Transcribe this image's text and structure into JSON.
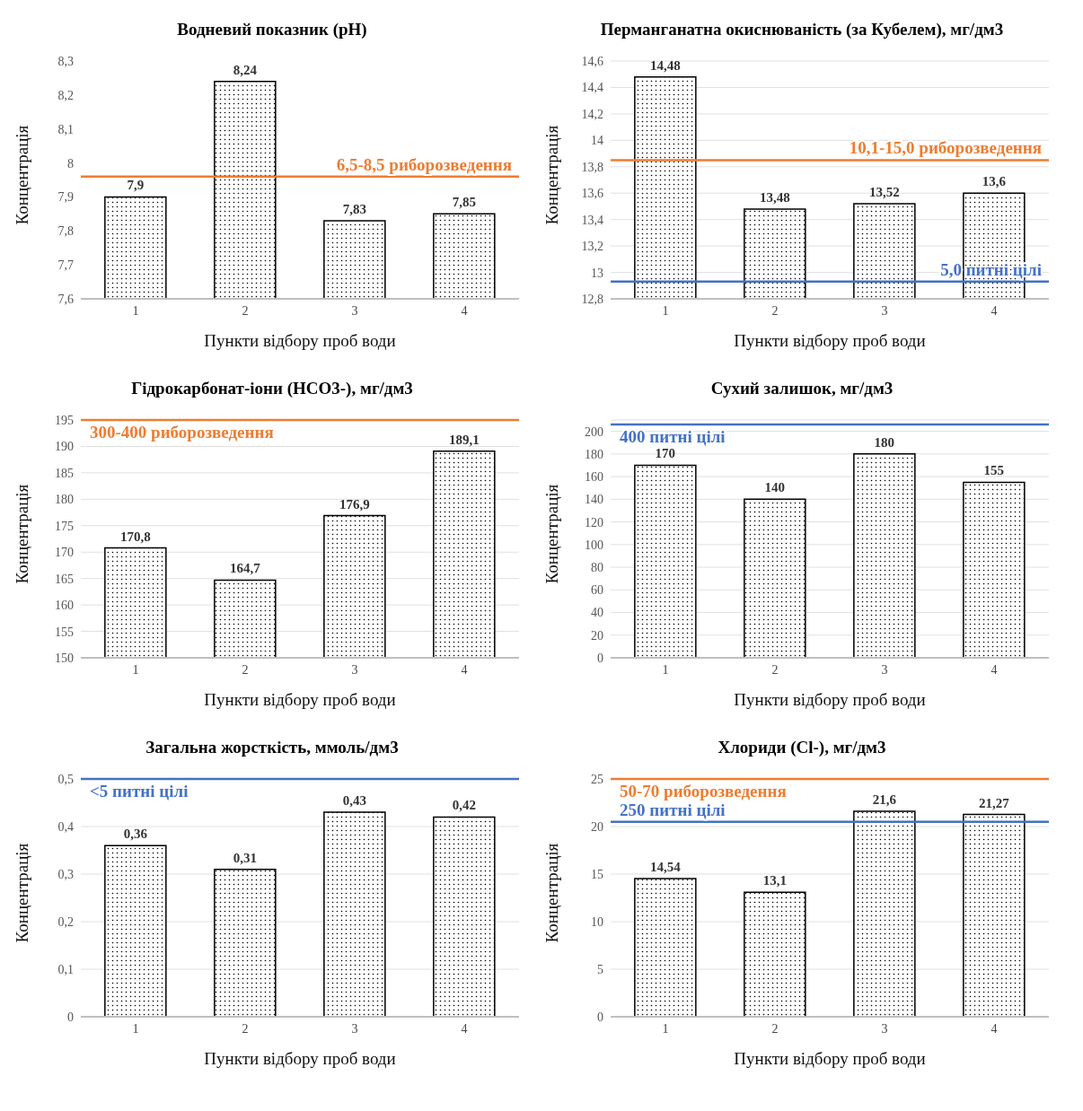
{
  "chart_data": [
    {
      "type": "bar",
      "title": "Водневий показник (pH)",
      "xlabel": "Пункти відбору проб води",
      "ylabel": "Концентрація",
      "categories": [
        "1",
        "2",
        "3",
        "4"
      ],
      "values": [
        7.9,
        8.24,
        7.83,
        7.85
      ],
      "value_labels": [
        "7,9",
        "8,24",
        "7,83",
        "7,85"
      ],
      "color": "#000000",
      "ylim": [
        7.6,
        8.3
      ],
      "yticks": [
        {
          "value": 7.6,
          "label": "7,6"
        },
        {
          "value": 7.7,
          "label": "7,7"
        },
        {
          "value": 7.8,
          "label": "7,8"
        },
        {
          "value": 7.9,
          "label": "7,9"
        },
        8,
        {
          "value": 8.1,
          "label": "8,1"
        },
        {
          "value": 8.2,
          "label": "8,2"
        },
        {
          "value": 8.3,
          "label": "8,3"
        }
      ],
      "grid": false,
      "ref_lines": [
        {
          "axis": "y",
          "value": 7.96,
          "label": "6,5-8,5  риборозведення",
          "color": "#ed7d31"
        }
      ]
    },
    {
      "type": "bar",
      "title": "Перманганатна окиснюваність (за Кубелем), мг/дм3",
      "xlabel": "Пункти відбору проб води",
      "ylabel": "Концентрація",
      "categories": [
        "1",
        "2",
        "3",
        "4"
      ],
      "values": [
        14.48,
        13.48,
        13.52,
        13.6
      ],
      "value_labels": [
        "14,48",
        "13,48",
        "13,52",
        "13,6"
      ],
      "color": "#000000",
      "ylim": [
        12.8,
        14.6
      ],
      "yticks": [
        {
          "value": 12.8,
          "label": "12,8"
        },
        13,
        {
          "value": 13.2,
          "label": "13,2"
        },
        {
          "value": 13.4,
          "label": "13,4"
        },
        {
          "value": 13.6,
          "label": "13,6"
        },
        {
          "value": 13.8,
          "label": "13,8"
        },
        14,
        {
          "value": 14.2,
          "label": "14,2"
        },
        {
          "value": 14.4,
          "label": "14,4"
        },
        {
          "value": 14.6,
          "label": "14,6"
        }
      ],
      "grid": "y",
      "ref_lines": [
        {
          "axis": "y",
          "value": 13.85,
          "label": "10,1-15,0  риборозведення",
          "color": "#ed7d31"
        },
        {
          "axis": "y",
          "value": 12.93,
          "label": "5,0  питні цілі",
          "color": "#4472c4"
        }
      ]
    },
    {
      "type": "bar",
      "title": "Гідрокарбонат-іони (HCO3-), мг/дм3",
      "xlabel": "Пункти відбору проб води",
      "ylabel": "Концентрація",
      "categories": [
        "1",
        "2",
        "3",
        "4"
      ],
      "values": [
        170.8,
        164.7,
        176.9,
        189.1
      ],
      "value_labels": [
        "170,8",
        "164,7",
        "176,9",
        "189,1"
      ],
      "color": "#000000",
      "ylim": [
        150,
        195
      ],
      "yticks": [
        150,
        155,
        160,
        165,
        170,
        175,
        180,
        185,
        190,
        195
      ],
      "grid": "y",
      "ref_lines": [
        {
          "axis": "y",
          "value": 195,
          "label": "300-400  риборозведення",
          "color": "#ed7d31"
        }
      ]
    },
    {
      "type": "bar",
      "title": "Сухий залишок, мг/дм3",
      "xlabel": "Пункти відбору проб води",
      "ylabel": "Концентрація",
      "categories": [
        "1",
        "2",
        "3",
        "4"
      ],
      "values": [
        170,
        140,
        180,
        155
      ],
      "data_labels": true,
      "color": "#000000",
      "ylim": [
        0,
        210
      ],
      "yticks": [
        0,
        20,
        40,
        60,
        80,
        100,
        120,
        140,
        160,
        180,
        200
      ],
      "grid": "y",
      "ref_lines": [
        {
          "axis": "y",
          "value": 206,
          "label": "400  питні цілі",
          "color": "#4472c4"
        }
      ]
    },
    {
      "type": "bar",
      "title": "Загальна жорсткість, ммоль/дм3",
      "xlabel": "Пункти відбору проб води",
      "ylabel": "Концентрація",
      "categories": [
        "1",
        "2",
        "3",
        "4"
      ],
      "values": [
        0.36,
        0.31,
        0.43,
        0.42
      ],
      "value_labels": [
        "0,36",
        "0,31",
        "0,43",
        "0,42"
      ],
      "color": "#000000",
      "ylim": [
        0,
        0.5
      ],
      "yticks": [
        0,
        {
          "value": 0.1,
          "label": "0,1"
        },
        {
          "value": 0.2,
          "label": "0,2"
        },
        {
          "value": 0.3,
          "label": "0,3"
        },
        {
          "value": 0.4,
          "label": "0,4"
        },
        {
          "value": 0.5,
          "label": "0,5"
        }
      ],
      "grid": "y",
      "ref_lines": [
        {
          "axis": "y",
          "value": 0.5,
          "label": "<5  питні цілі",
          "color": "#4472c4"
        }
      ]
    },
    {
      "type": "bar",
      "title": "Хлориди (Cl-), мг/дм3",
      "xlabel": "Пункти відбору проб води",
      "ylabel": "Концентрація",
      "categories": [
        "1",
        "2",
        "3",
        "4"
      ],
      "values": [
        14.54,
        13.1,
        21.6,
        21.27
      ],
      "value_labels": [
        "14,54",
        "13,1",
        "21,6",
        "21,27"
      ],
      "color": "#000000",
      "ylim": [
        0,
        25
      ],
      "yticks": [
        0,
        5,
        10,
        15,
        20,
        25
      ],
      "grid": "y",
      "ref_lines": [
        {
          "axis": "y",
          "value": 25,
          "label": "50-70  риборозведення",
          "color": "#ed7d31"
        },
        {
          "axis": "y",
          "value": 20.5,
          "label": "250  питні цілі",
          "color": "#4472c4"
        }
      ]
    }
  ]
}
